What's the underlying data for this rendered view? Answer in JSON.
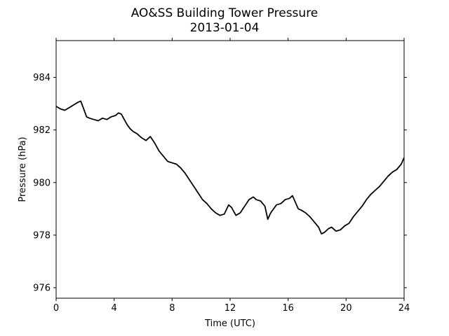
{
  "chart_data": {
    "type": "line",
    "title": "AO&SS Building Tower Pressure",
    "subtitle": "2013-01-04",
    "xlabel": "Time (UTC)",
    "ylabel": "Pressure (hPa)",
    "xlim": [
      0,
      24
    ],
    "ylim": [
      975.6,
      985.4
    ],
    "xticks": [
      0,
      4,
      8,
      12,
      16,
      20,
      24
    ],
    "yticks": [
      976,
      978,
      980,
      982,
      984
    ],
    "grid": false,
    "line_color": "#000000",
    "series": [
      {
        "x": [
          0,
          0.3,
          0.6,
          0.9,
          1.2,
          1.5,
          1.7,
          1.9,
          2.1,
          2.3,
          2.6,
          2.9,
          3.2,
          3.5,
          3.8,
          4.1,
          4.3,
          4.5,
          4.7,
          4.9,
          5.1,
          5.3,
          5.6,
          5.9,
          6.2,
          6.5,
          6.8,
          7.1,
          7.4,
          7.7,
          8.0,
          8.3,
          8.6,
          8.9,
          9.2,
          9.5,
          9.8,
          10.1,
          10.4,
          10.7,
          11.0,
          11.3,
          11.6,
          11.9,
          12.1,
          12.4,
          12.7,
          13.0,
          13.3,
          13.6,
          13.8,
          14.1,
          14.4,
          14.6,
          14.8,
          15.0,
          15.2,
          15.5,
          15.8,
          16.1,
          16.3,
          16.5,
          16.7,
          16.9,
          17.2,
          17.5,
          17.8,
          18.1,
          18.3,
          18.5,
          18.8,
          19.0,
          19.3,
          19.6,
          19.9,
          20.2,
          20.5,
          20.8,
          21.1,
          21.4,
          21.7,
          22.0,
          22.3,
          22.6,
          22.9,
          23.2,
          23.5,
          23.8,
          24.0
        ],
        "y": [
          982.9,
          982.8,
          982.75,
          982.85,
          982.95,
          983.05,
          983.1,
          982.8,
          982.5,
          982.45,
          982.4,
          982.35,
          982.45,
          982.4,
          982.5,
          982.55,
          982.65,
          982.6,
          982.4,
          982.2,
          982.05,
          981.95,
          981.85,
          981.7,
          981.6,
          981.75,
          981.5,
          981.2,
          981.0,
          980.8,
          980.75,
          980.7,
          980.55,
          980.35,
          980.1,
          979.85,
          979.6,
          979.35,
          979.2,
          979.0,
          978.85,
          978.75,
          978.8,
          979.15,
          979.05,
          978.75,
          978.85,
          979.1,
          979.35,
          979.45,
          979.35,
          979.3,
          979.1,
          978.6,
          978.85,
          979.0,
          979.15,
          979.2,
          979.35,
          979.4,
          979.5,
          979.25,
          979.0,
          978.95,
          978.85,
          978.7,
          978.5,
          978.3,
          978.05,
          978.1,
          978.25,
          978.3,
          978.15,
          978.2,
          978.35,
          978.45,
          978.7,
          978.9,
          979.1,
          979.35,
          979.55,
          979.7,
          979.85,
          980.05,
          980.25,
          980.4,
          980.5,
          980.7,
          980.95
        ]
      }
    ]
  }
}
